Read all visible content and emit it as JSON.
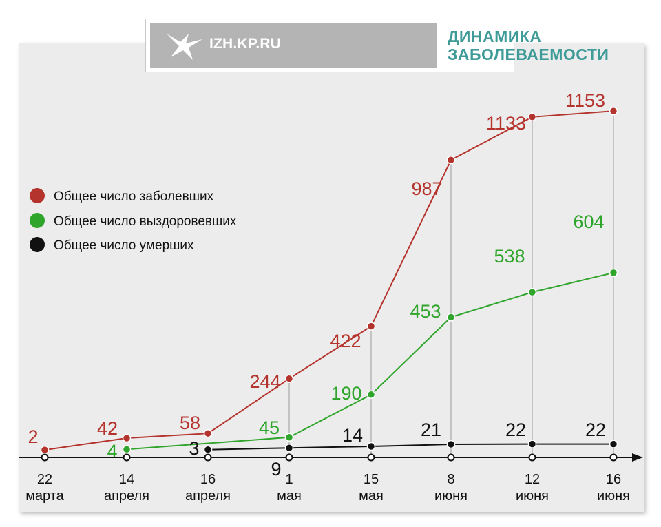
{
  "header": {
    "site": "IZH.KP.RU",
    "title_line1": "ДИНАМИКА",
    "title_line2": "ЗАБОЛЕВАЕМОСТИ",
    "logo_icon": "swallow-bird-icon"
  },
  "colors": {
    "cases": "#b5332d",
    "recovered": "#2fa52b",
    "deaths": "#111111",
    "title": "#3f9b98"
  },
  "chart_data": {
    "type": "line",
    "categories": [
      [
        "22",
        "марта"
      ],
      [
        "14",
        "апреля"
      ],
      [
        "16",
        "апреля"
      ],
      [
        "1",
        "мая"
      ],
      [
        "15",
        "мая"
      ],
      [
        "8",
        "июня"
      ],
      [
        "12",
        "июня"
      ],
      [
        "16",
        "июня"
      ]
    ],
    "series": [
      {
        "name": "Общее число заболевших",
        "key": "cases",
        "values": [
          2,
          42,
          58,
          244,
          422,
          987,
          1133,
          1153
        ],
        "labels": [
          "2",
          "42",
          "58",
          "244",
          "422",
          "987",
          "1133",
          "1153"
        ]
      },
      {
        "name": "Общее число выздоровевших",
        "key": "recovered",
        "values": [
          null,
          4,
          null,
          45,
          190,
          453,
          538,
          604
        ],
        "labels": [
          "",
          "4",
          "",
          "45",
          "190",
          "453",
          "538",
          "604"
        ]
      },
      {
        "name": "Общее число умерших",
        "key": "deaths",
        "values": [
          null,
          null,
          3,
          9,
          14,
          21,
          22,
          22
        ],
        "labels": [
          "",
          "",
          "3",
          "9",
          "14",
          "21",
          "22",
          "22"
        ]
      }
    ],
    "legend_position": "left",
    "grid": false
  }
}
